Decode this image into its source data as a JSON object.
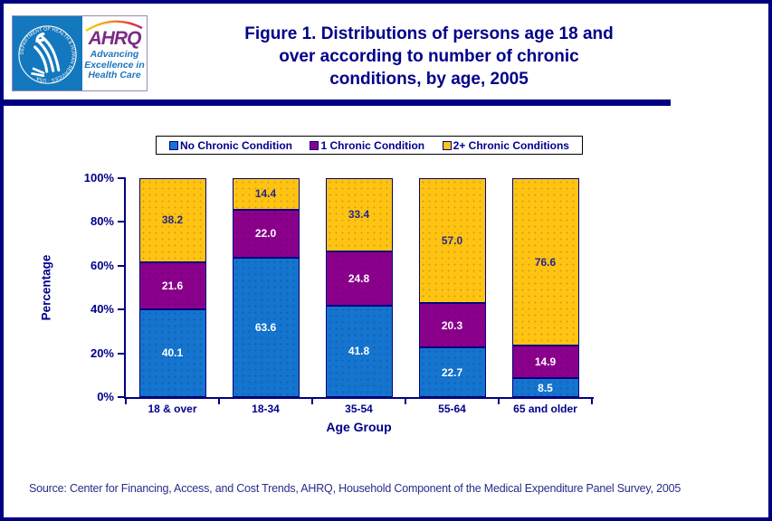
{
  "header": {
    "title_lines": [
      "Figure 1. Distributions of persons age 18 and",
      "over according to number of chronic",
      "conditions, by age, 2005"
    ],
    "logo": {
      "hhs_circle_text": "DEPARTMENT OF HEALTH & HUMAN SERVICES · USA",
      "ahrq_acronym": "AHRQ",
      "ahrq_tagline_lines": [
        "Advancing",
        "Excellence in",
        "Health Care"
      ]
    }
  },
  "chart_data": {
    "type": "bar",
    "stacked": true,
    "categories": [
      "18 & over",
      "18-34",
      "35-54",
      "55-64",
      "65 and older"
    ],
    "series": [
      {
        "name": "No Chronic Condition",
        "values": [
          40.1,
          63.6,
          41.8,
          22.7,
          8.5
        ],
        "color": "#1574CD",
        "label_color": "#FFFFFF"
      },
      {
        "name": "1 Chronic Condition",
        "values": [
          21.6,
          22.0,
          24.8,
          20.3,
          14.9
        ],
        "color": "#8B008B",
        "label_color": "#FFFFFF"
      },
      {
        "name": "2+ Chronic Conditions",
        "values": [
          38.2,
          14.4,
          33.4,
          57.0,
          76.6
        ],
        "color": "#FFC412",
        "label_color": "#26268C"
      }
    ],
    "xlabel": "Age Group",
    "ylabel": "Percentage",
    "ylim": [
      0,
      100
    ],
    "ytick_values": [
      0,
      20,
      40,
      60,
      80,
      100
    ],
    "ytick_labels": [
      "0%",
      "20%",
      "40%",
      "60%",
      "80%",
      "100%"
    ],
    "legend_position": "top",
    "grid": false
  },
  "footer": {
    "source": "Source: Center for Financing, Access, and Cost Trends, AHRQ, Household Component of the Medical Expenditure Panel Survey, 2005"
  },
  "colors": {
    "page_border": "#000080",
    "title_text": "#00008B",
    "axis": "#000080",
    "hhs_blue": "#1478BE",
    "ahrq_purple": "#7C2B88",
    "tagline_blue": "#1F75BC"
  }
}
